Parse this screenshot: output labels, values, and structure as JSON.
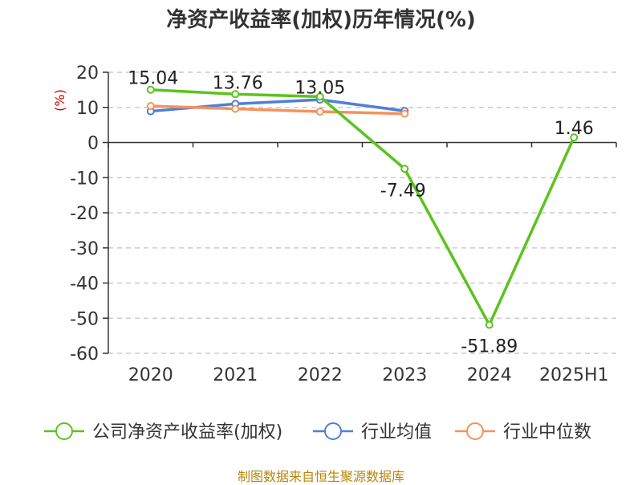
{
  "chart_data": {
    "type": "line",
    "title": "净资产收益率(加权)历年情况(%)",
    "ylabel": "(%)",
    "categories": [
      "2020",
      "2021",
      "2022",
      "2023",
      "2024",
      "2025H1"
    ],
    "ylim": [
      -60,
      20
    ],
    "yticks": [
      20,
      10,
      0,
      -10,
      -20,
      -30,
      -40,
      -50,
      -60
    ],
    "grid": true,
    "legend_position": "bottom",
    "series": [
      {
        "name": "公司净资产收益率(加权)",
        "color": "#5cc31e",
        "values": [
          15.04,
          13.76,
          13.05,
          -7.49,
          -51.89,
          1.46
        ],
        "labels": [
          "15.04",
          "13.76",
          "13.05",
          "-7.49",
          "-51.89",
          "1.46"
        ]
      },
      {
        "name": "行业均值",
        "color": "#4f7fd9",
        "values": [
          8.9,
          11.0,
          12.2,
          9.0,
          null,
          null
        ]
      },
      {
        "name": "行业中位数",
        "color": "#f5925a",
        "values": [
          10.4,
          9.6,
          8.8,
          8.2,
          null,
          null
        ]
      }
    ]
  },
  "source_note": "制图数据来自恒生聚源数据库"
}
